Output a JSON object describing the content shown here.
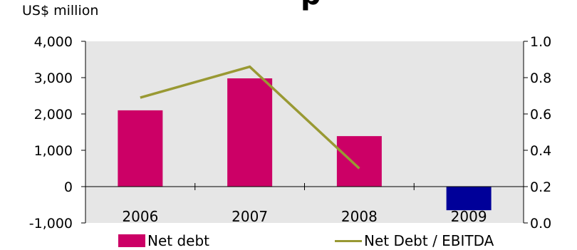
{
  "unit_label": "US$ million",
  "title_fragment": "p",
  "colors": {
    "plot_bg": "#e6e6e6",
    "bar_positive": "#cc0066",
    "bar_negative": "#000099",
    "line": "#999933"
  },
  "chart_data": {
    "type": "bar",
    "categories": [
      "2006",
      "2007",
      "2008",
      "2009"
    ],
    "series": [
      {
        "name": "Net debt",
        "type": "bar",
        "axis": "left",
        "values": [
          2100,
          2980,
          1390,
          -650
        ]
      },
      {
        "name": "Net Debt / EBITDA",
        "type": "line",
        "axis": "right",
        "values": [
          0.69,
          0.86,
          0.3,
          null
        ]
      }
    ],
    "y_left": {
      "min": -1000,
      "max": 4000,
      "ticks": [
        -1000,
        0,
        1000,
        2000,
        3000,
        4000
      ],
      "tick_labels": [
        "-1,000",
        "0",
        "1,000",
        "2,000",
        "3,000",
        "4,000"
      ]
    },
    "y_right": {
      "min": 0,
      "max": 1,
      "ticks": [
        0,
        0.2,
        0.4,
        0.6,
        0.8,
        1.0
      ],
      "tick_labels": [
        "0.0",
        "0.2",
        "0.4",
        "0.6",
        "0.8",
        "1.0"
      ]
    },
    "legend_position": "bottom",
    "grid": false
  }
}
